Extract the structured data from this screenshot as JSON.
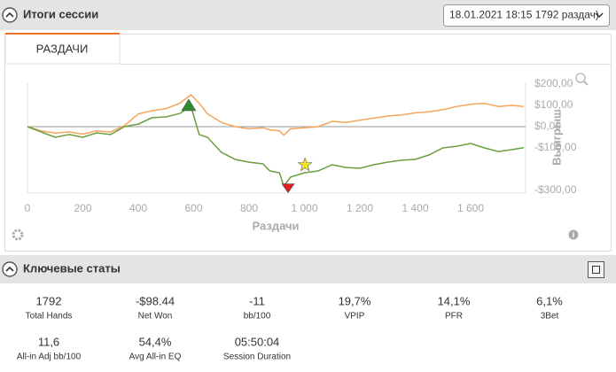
{
  "header": {
    "title": "Итоги сессии",
    "session_select": "18.01.2021 18:15 1792 раздач)"
  },
  "tabs": [
    "РАЗДАЧИ"
  ],
  "chart_data": {
    "type": "line",
    "x": [
      0,
      50,
      100,
      150,
      200,
      250,
      300,
      350,
      400,
      450,
      500,
      550,
      590,
      620,
      650,
      700,
      750,
      800,
      850,
      875,
      910,
      925,
      950,
      1000,
      1050,
      1100,
      1150,
      1200,
      1250,
      1300,
      1350,
      1400,
      1450,
      1500,
      1550,
      1600,
      1650,
      1700,
      1750,
      1792
    ],
    "series": [
      {
        "color": "#f5a55a",
        "values": [
          0,
          -20,
          -30,
          -25,
          -35,
          -20,
          -25,
          5,
          60,
          75,
          85,
          110,
          150,
          110,
          60,
          20,
          0,
          -10,
          -5,
          -15,
          -20,
          -40,
          -10,
          -5,
          0,
          25,
          20,
          30,
          40,
          50,
          55,
          65,
          70,
          80,
          95,
          105,
          110,
          95,
          100,
          95
        ]
      },
      {
        "color": "#6a9e3f",
        "values": [
          0,
          -25,
          -50,
          -37,
          -50,
          -29,
          -37,
          0,
          12,
          42,
          46,
          62,
          96,
          -37,
          -50,
          -121,
          -154,
          -167,
          -175,
          -208,
          -217,
          -279,
          -237,
          -217,
          -208,
          -179,
          -192,
          -196,
          -179,
          -167,
          -158,
          -154,
          -133,
          -100,
          -92,
          -79,
          -100,
          -117,
          -108,
          -98.44
        ]
      }
    ],
    "xlim": [
      0,
      1792
    ],
    "xticks": [
      0,
      200,
      400,
      600,
      800,
      {
        "value": 1000,
        "label": "1 000"
      },
      {
        "value": 1200,
        "label": "1 200"
      },
      {
        "value": 1400,
        "label": "1 400"
      },
      {
        "value": 1600,
        "label": "1 600"
      }
    ],
    "ylim": [
      -320,
      215
    ],
    "yticks": [
      {
        "value": 200,
        "label": "$200,00"
      },
      {
        "value": 100,
        "label": "$100,00"
      },
      {
        "value": 0,
        "label": "$0,00"
      },
      {
        "value": -100,
        "label": "-$100,00"
      },
      {
        "value": -300,
        "label": "-$300,00"
      }
    ],
    "x_label": "Раздачи",
    "y_label": "Выигрыш",
    "markers": [
      {
        "x": 582,
        "y": 100,
        "color": "#2e8b2e",
        "shape": "triangle-up"
      },
      {
        "x": 941,
        "y": -290,
        "color": "#e02020",
        "shape": "triangle-down"
      },
      {
        "x": 1002,
        "y": -180,
        "color": "#f2e62a",
        "shape": "star"
      }
    ]
  },
  "stats": {
    "title": "Ключевые статы",
    "items": [
      {
        "value": "1792",
        "label": "Total Hands"
      },
      {
        "value": "-$98.44",
        "label": "Net Won"
      },
      {
        "value": "-11",
        "label": "bb/100"
      },
      {
        "value": "19,7%",
        "label": "VPIP"
      },
      {
        "value": "14,1%",
        "label": "PFR"
      },
      {
        "value": "6,1%",
        "label": "3Bet"
      },
      {
        "value": "11,6",
        "label": "All-in Adj bb/100"
      },
      {
        "value": "54,4%",
        "label": "Avg All-in EQ"
      },
      {
        "value": "05:50:04",
        "label": "Session Duration"
      }
    ]
  }
}
